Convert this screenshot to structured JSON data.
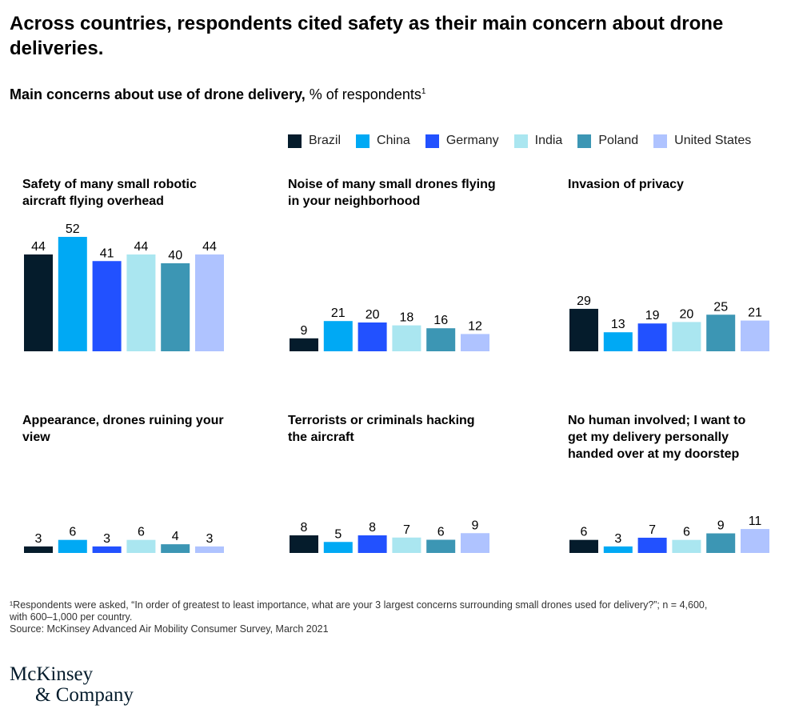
{
  "title": "Across countries, respondents cited safety as their main concern about drone deliveries.",
  "subtitle": {
    "bold": "Main concerns about use of drone delivery,",
    "rest": " % of respondents",
    "sup": "1"
  },
  "chart_data": [
    {
      "type": "bar",
      "title": "Safety of many small robotic aircraft flying overhead",
      "categories": [
        "Brazil",
        "China",
        "Germany",
        "India",
        "Poland",
        "United States"
      ],
      "values": [
        44,
        52,
        41,
        44,
        40,
        44
      ]
    },
    {
      "type": "bar",
      "title": "Noise of many small drones flying in your neighborhood",
      "categories": [
        "Brazil",
        "China",
        "Germany",
        "India",
        "Poland",
        "United States"
      ],
      "values": [
        9,
        21,
        20,
        18,
        16,
        12
      ]
    },
    {
      "type": "bar",
      "title": "Invasion of privacy",
      "categories": [
        "Brazil",
        "China",
        "Germany",
        "India",
        "Poland",
        "United States"
      ],
      "values": [
        29,
        13,
        19,
        20,
        25,
        21
      ]
    },
    {
      "type": "bar",
      "title": "Appearance, drones ruining your view",
      "categories": [
        "Brazil",
        "China",
        "Germany",
        "India",
        "Poland",
        "United States"
      ],
      "values": [
        3,
        6,
        3,
        6,
        4,
        3
      ]
    },
    {
      "type": "bar",
      "title": "Terrorists or criminals hacking the aircraft",
      "categories": [
        "Brazil",
        "China",
        "Germany",
        "India",
        "Poland",
        "United States"
      ],
      "values": [
        8,
        5,
        8,
        7,
        6,
        9
      ]
    },
    {
      "type": "bar",
      "title": "No human involved; I want to get my delivery personally handed over at my doorstep",
      "categories": [
        "Brazil",
        "China",
        "Germany",
        "India",
        "Poland",
        "United States"
      ],
      "values": [
        6,
        3,
        7,
        6,
        9,
        11
      ]
    }
  ],
  "legend": [
    {
      "name": "Brazil",
      "color": "#051c2c"
    },
    {
      "name": "China",
      "color": "#00a9f4"
    },
    {
      "name": "Germany",
      "color": "#2251ff"
    },
    {
      "name": "India",
      "color": "#aae6f0"
    },
    {
      "name": "Poland",
      "color": "#3c96b4"
    },
    {
      "name": "United States",
      "color": "#afc3ff"
    }
  ],
  "footnote": {
    "line1": "¹Respondents were asked, “In order of greatest to least importance, what are your 3 largest concerns surrounding small drones used for delivery?”; n = 4,600,",
    "line2": " with 600–1,000 per country.",
    "source": " Source: McKinsey Advanced Air Mobility Consumer Survey, March 2021"
  },
  "logo": {
    "line1": "McKinsey",
    "line2": "& Company"
  }
}
